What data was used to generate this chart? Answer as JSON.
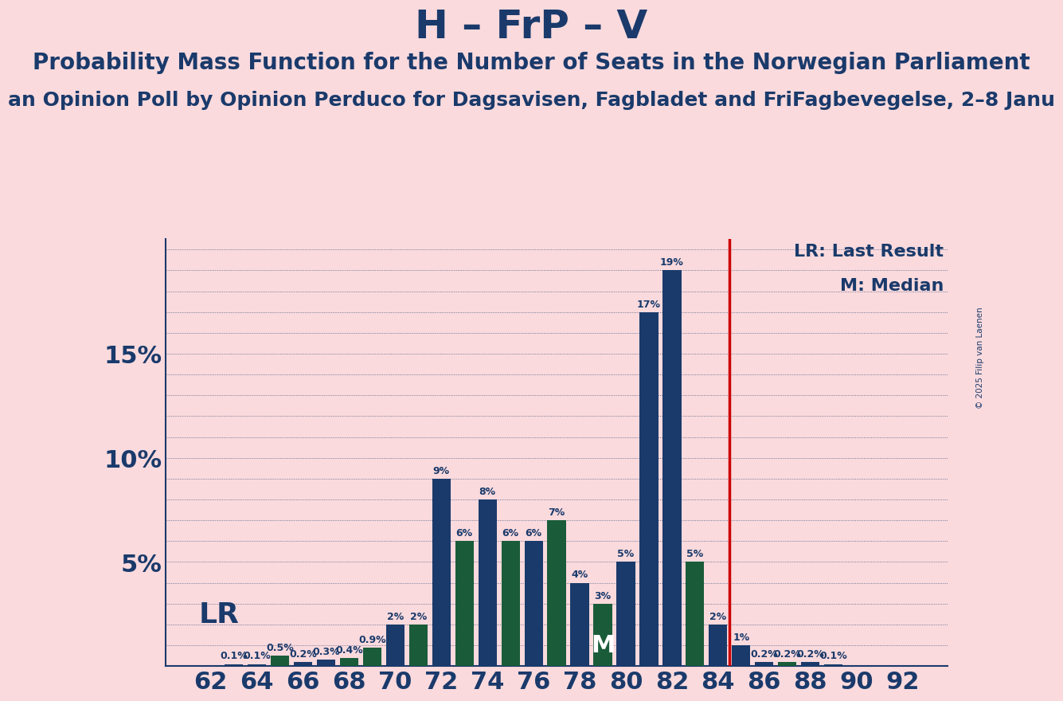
{
  "title": "H – FrP – V",
  "subtitle1": "Probability Mass Function for the Number of Seats in the Norwegian Parliament",
  "subtitle2": "an Opinion Poll by Opinion Perduco for Dagsavisen, Fagbladet and FriFagbevegelse, 2–8 Janu",
  "copyright": "© 2025 Filip van Laenen",
  "bg_color": "#FADADD",
  "bar_color_blue": "#1a3a6b",
  "bar_color_green": "#1a5c3a",
  "vline_color": "#cc0000",
  "text_color": "#1a3a6b",
  "grid_color": "#1a3a6b",
  "xlabel_fontsize": 22,
  "ylabel_fontsize": 22,
  "title_fontsize": 36,
  "subtitle1_fontsize": 20,
  "subtitle2_fontsize": 18,
  "seats": [
    62,
    63,
    64,
    65,
    66,
    67,
    68,
    69,
    70,
    71,
    72,
    73,
    74,
    75,
    76,
    77,
    78,
    79,
    80,
    81,
    82,
    83,
    84,
    85,
    86,
    87,
    88,
    89,
    90,
    91,
    92
  ],
  "probabilities": [
    0.0,
    0.1,
    0.1,
    0.5,
    0.2,
    0.3,
    0.4,
    0.9,
    2.0,
    2.0,
    9.0,
    6.0,
    8.0,
    6.0,
    6.0,
    7.0,
    4.0,
    3.0,
    5.0,
    17.0,
    19.0,
    5.0,
    2.0,
    1.0,
    0.2,
    0.2,
    0.2,
    0.1,
    0.0,
    0.0,
    0.0
  ],
  "bar_colors": [
    "#1a3a6b",
    "#1a3a6b",
    "#1a3a6b",
    "#1a5c3a",
    "#1a3a6b",
    "#1a3a6b",
    "#1a5c3a",
    "#1a5c3a",
    "#1a3a6b",
    "#1a5c3a",
    "#1a3a6b",
    "#1a5c3a",
    "#1a3a6b",
    "#1a5c3a",
    "#1a3a6b",
    "#1a5c3a",
    "#1a3a6b",
    "#1a5c3a",
    "#1a3a6b",
    "#1a3a6b",
    "#1a3a6b",
    "#1a5c3a",
    "#1a3a6b",
    "#1a3a6b",
    "#1a3a6b",
    "#1a5c3a",
    "#1a3a6b",
    "#1a3a6b",
    "#1a3a6b",
    "#1a3a6b",
    "#1a3a6b"
  ],
  "lr_seat": 65,
  "lr_label": "LR",
  "median_seat": 79,
  "median_label": "M",
  "vline_x": 84.5,
  "ylim": [
    0,
    20.5
  ],
  "yticks": [
    5,
    10,
    15
  ],
  "xticks": [
    62,
    64,
    66,
    68,
    70,
    72,
    74,
    76,
    78,
    80,
    82,
    84,
    86,
    88,
    90,
    92
  ],
  "legend_lr": "LR: Last Result",
  "legend_m": "M: Median",
  "bar_label_fontsize": 9,
  "annot_lr_fontsize": 26,
  "annot_m_fontsize": 22,
  "legend_fontsize": 16
}
